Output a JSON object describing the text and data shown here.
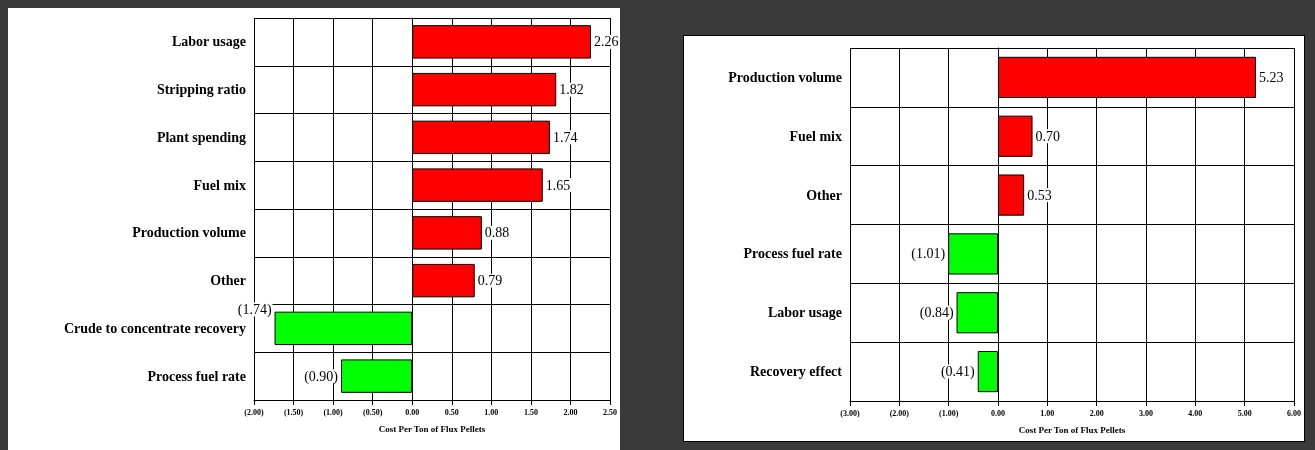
{
  "chart_data": [
    {
      "type": "bar",
      "orientation": "horizontal",
      "xlabel": "Cost Per Ton of Flux Pellets",
      "categories": [
        "Labor usage",
        "Stripping ratio",
        "Plant spending",
        "Fuel mix",
        "Production volume",
        "Other",
        "Crude to concentrate recovery",
        "Process fuel rate"
      ],
      "values": [
        2.26,
        1.82,
        1.74,
        1.65,
        0.88,
        0.79,
        -1.74,
        -0.9
      ],
      "colors": [
        "#ff0000",
        "#ff0000",
        "#ff0000",
        "#ff0000",
        "#ff0000",
        "#ff0000",
        "#00ff00",
        "#00ff00"
      ],
      "value_labels": [
        "2.26",
        "1.82",
        "1.74",
        "1.65",
        "0.88",
        "0.79",
        "(1.74)",
        "(0.90)"
      ],
      "xlim": [
        -2,
        2.5
      ],
      "xticks": [
        {
          "value": -2,
          "label": "(2.00)"
        },
        {
          "value": -1.5,
          "label": "(1.50)"
        },
        {
          "value": -1,
          "label": "(1.00)"
        },
        {
          "value": -0.5,
          "label": "(0.50)"
        },
        {
          "value": 0,
          "label": "0.00"
        },
        {
          "value": 0.5,
          "label": "0.50"
        },
        {
          "value": 1,
          "label": "1.00"
        },
        {
          "value": 1.5,
          "label": "1.50"
        },
        {
          "value": 2,
          "label": "2.00"
        },
        {
          "value": 2.5,
          "label": "2.50"
        }
      ],
      "grid": true
    },
    {
      "type": "bar",
      "orientation": "horizontal",
      "xlabel": "Cost Per Ton of Flux Pellets",
      "categories": [
        "Production volume",
        "Fuel mix",
        "Other",
        "Process fuel rate",
        "Labor usage",
        "Recovery effect"
      ],
      "values": [
        5.23,
        0.7,
        0.53,
        -1.01,
        -0.84,
        -0.41
      ],
      "colors": [
        "#ff0000",
        "#ff0000",
        "#ff0000",
        "#00ff00",
        "#00ff00",
        "#00ff00"
      ],
      "value_labels": [
        "5.23",
        "0.70",
        "0.53",
        "(1.01)",
        "(0.84)",
        "(0.41)"
      ],
      "xlim": [
        -3,
        6
      ],
      "xticks": [
        {
          "value": -3,
          "label": "(3.00)"
        },
        {
          "value": -2,
          "label": "(2.00)"
        },
        {
          "value": -1,
          "label": "(1.00)"
        },
        {
          "value": 0,
          "label": "0.00"
        },
        {
          "value": 1,
          "label": "1.00"
        },
        {
          "value": 2,
          "label": "2.00"
        },
        {
          "value": 3,
          "label": "3.00"
        },
        {
          "value": 4,
          "label": "4.00"
        },
        {
          "value": 5,
          "label": "5.00"
        },
        {
          "value": 6,
          "label": "6.00"
        }
      ],
      "grid": true
    }
  ]
}
